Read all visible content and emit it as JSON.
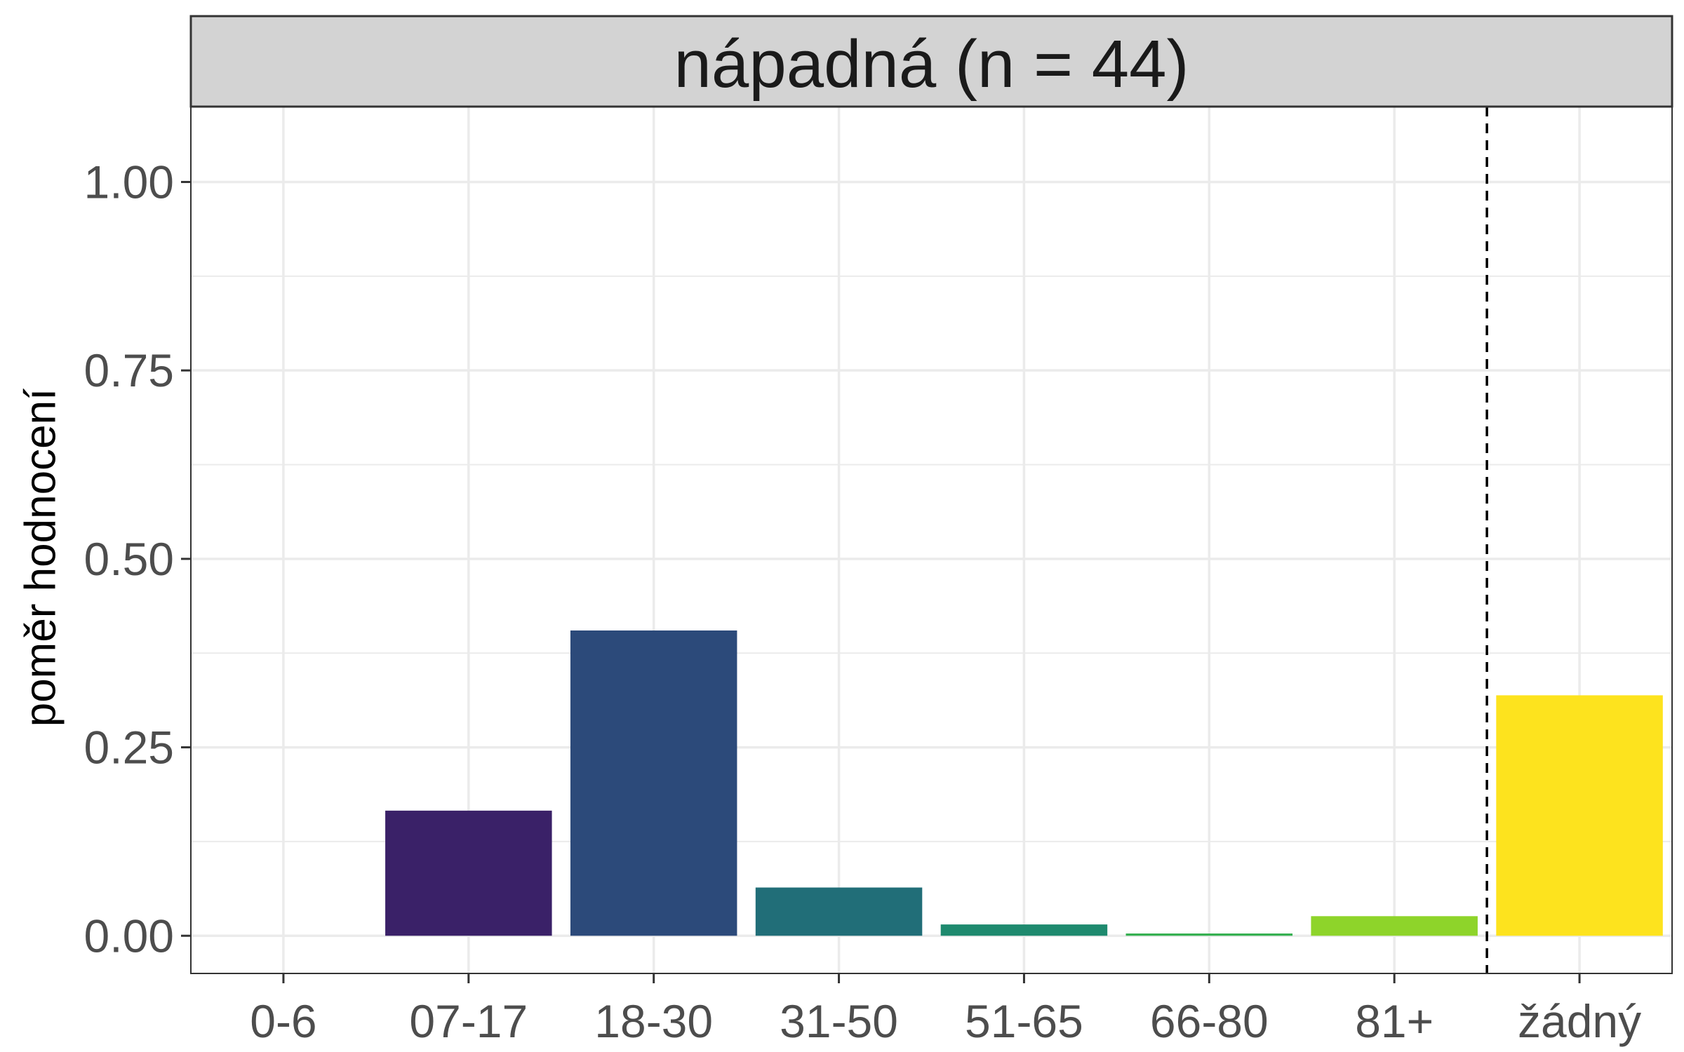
{
  "chart_data": {
    "type": "bar",
    "title": "nápadná (n = 44)",
    "xlabel": "",
    "ylabel": "poměr hodnocení",
    "ylim": [
      -0.05,
      1.1
    ],
    "yticks": [
      0.0,
      0.25,
      0.5,
      0.75,
      1.0
    ],
    "ytick_labels": [
      "0.00",
      "0.25",
      "0.50",
      "0.75",
      "1.00"
    ],
    "categories": [
      "0-6",
      "07-17",
      "18-30",
      "31-50",
      "51-65",
      "66-80",
      "81+",
      "žádný"
    ],
    "values": [
      0.0,
      0.166,
      0.405,
      0.064,
      0.015,
      0.003,
      0.026,
      0.319
    ],
    "colors": [
      "#440154",
      "#3a2168",
      "#2c4a7a",
      "#216e78",
      "#1e8a6e",
      "#35b050",
      "#8ed42a",
      "#fde31e"
    ],
    "reference_line": {
      "between": [
        "81+",
        "žádný"
      ],
      "style": "dashed"
    },
    "grid": true,
    "legend": "none",
    "facet_strip": true
  }
}
